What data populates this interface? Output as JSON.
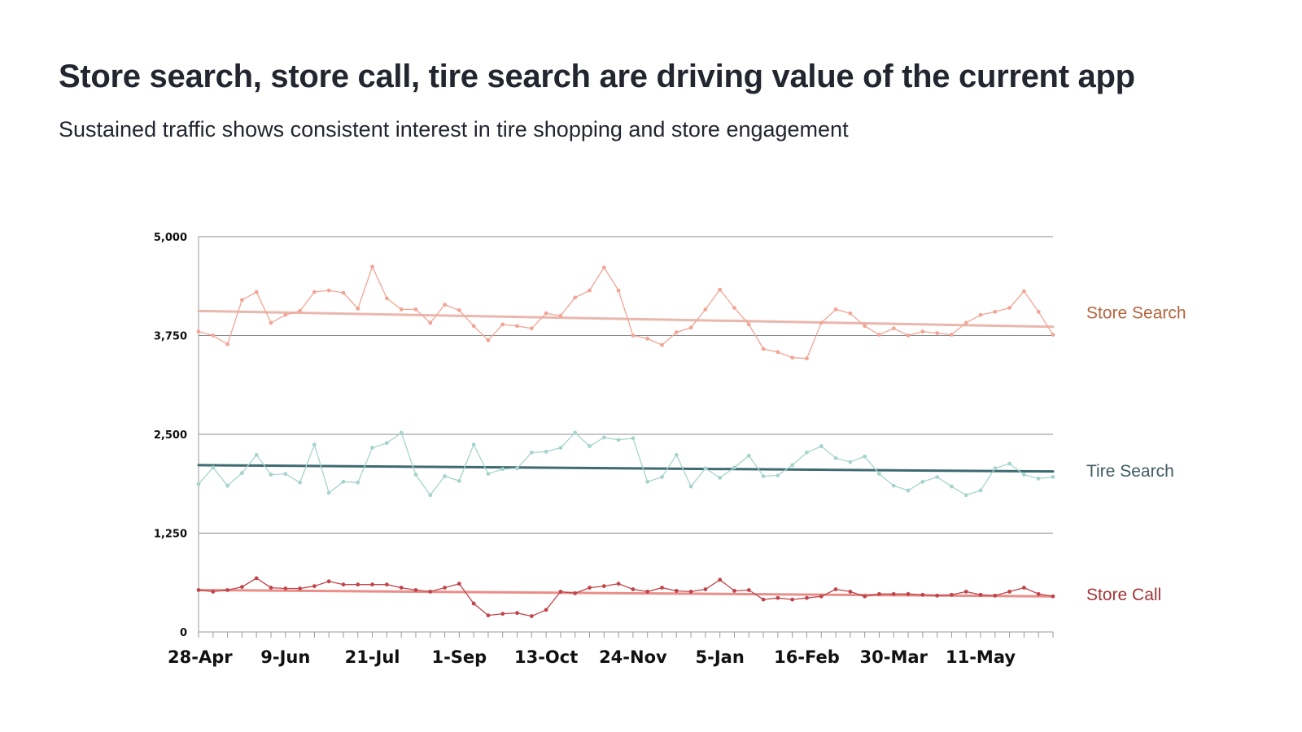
{
  "title": "Store search, store call, tire search are driving value of the current app",
  "subtitle": "Sustained traffic shows consistent interest in tire shopping and store engagement",
  "chart_data": {
    "type": "line",
    "ylim": [
      0,
      5000
    ],
    "yticks": [
      "0",
      "1,250",
      "2,500",
      "3,750",
      "5,000"
    ],
    "ytick_values": [
      0,
      1250,
      2500,
      3750,
      5000
    ],
    "grid": true,
    "x_tick_labels": [
      "28-Apr",
      "9-Jun",
      "21-Jul",
      "1-Sep",
      "13-Oct",
      "24-Nov",
      "5-Jan",
      "16-Feb",
      "30-Mar",
      "11-May"
    ],
    "x_tick_every": 6,
    "points": 60,
    "legend": "right (labels beside lines)",
    "series": [
      {
        "name": "Store Search",
        "color": "#f2a596",
        "label_color": "#b5643e",
        "trend": [
          4060,
          3860
        ],
        "trend_color": "#eab7ad",
        "values": [
          3800,
          3750,
          3640,
          4200,
          4300,
          3910,
          4010,
          4060,
          4300,
          4320,
          4290,
          4090,
          4620,
          4220,
          4080,
          4080,
          3910,
          4140,
          4070,
          3870,
          3690,
          3890,
          3870,
          3840,
          4030,
          4000,
          4230,
          4320,
          4610,
          4320,
          3750,
          3710,
          3630,
          3790,
          3850,
          4080,
          4330,
          4100,
          3890,
          3580,
          3540,
          3470,
          3460,
          3910,
          4080,
          4030,
          3870,
          3760,
          3840,
          3750,
          3800,
          3780,
          3760,
          3910,
          4010,
          4050,
          4100,
          4310,
          4050,
          3760
        ]
      },
      {
        "name": "Tire Search",
        "color": "#a6d4cd",
        "label_color": "#3e5b5f",
        "trend": [
          2110,
          2030
        ],
        "trend_color": "#3e6b70",
        "values": [
          1870,
          2080,
          1850,
          2010,
          2240,
          1990,
          2000,
          1890,
          2370,
          1760,
          1900,
          1890,
          2330,
          2390,
          2520,
          1990,
          1730,
          1970,
          1910,
          2370,
          2000,
          2060,
          2070,
          2270,
          2280,
          2330,
          2520,
          2350,
          2460,
          2430,
          2450,
          1900,
          1960,
          2240,
          1840,
          2070,
          1950,
          2080,
          2230,
          1970,
          1980,
          2110,
          2270,
          2350,
          2200,
          2150,
          2220,
          2000,
          1850,
          1790,
          1900,
          1960,
          1840,
          1730,
          1790,
          2070,
          2130,
          1990,
          1940,
          1960
        ]
      },
      {
        "name": "Store Call",
        "color": "#c0454a",
        "label_color": "#a33337",
        "trend": [
          530,
          450
        ],
        "trend_color": "#ea8e8a",
        "values": [
          530,
          510,
          530,
          570,
          680,
          560,
          550,
          550,
          580,
          640,
          600,
          600,
          600,
          600,
          560,
          530,
          510,
          560,
          610,
          360,
          210,
          230,
          240,
          200,
          280,
          510,
          490,
          560,
          580,
          610,
          540,
          510,
          560,
          520,
          510,
          540,
          660,
          520,
          530,
          410,
          430,
          410,
          430,
          450,
          540,
          510,
          450,
          480,
          480,
          480,
          470,
          460,
          470,
          510,
          470,
          460,
          510,
          560,
          480,
          450
        ]
      }
    ]
  }
}
